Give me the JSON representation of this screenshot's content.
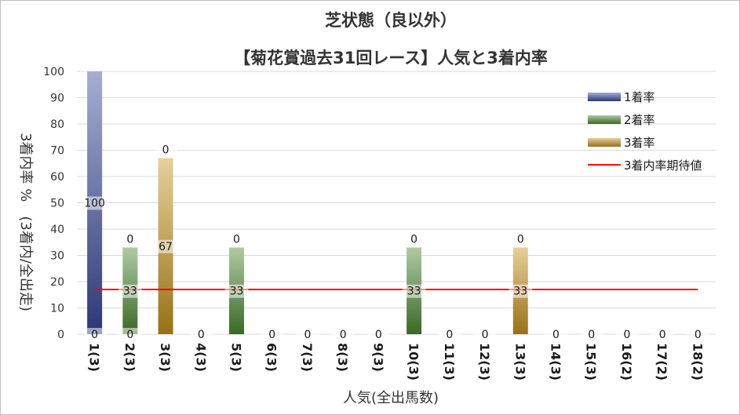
{
  "chart_data": {
    "type": "bar",
    "title": "芝状態（良以外）",
    "subtitle": "【菊花賞過去31回レース】人気と3着内率",
    "xlabel": "人気(全出馬数)",
    "ylabel": "3着内率 %　(3着内/全出走)",
    "ylim": [
      0,
      100
    ],
    "yticks": [
      0,
      10,
      20,
      30,
      40,
      50,
      60,
      70,
      80,
      90,
      100
    ],
    "grid": true,
    "legend_position": "right",
    "stacked": true,
    "categories": [
      "1(3)",
      "2(3)",
      "3(3)",
      "4(3)",
      "5(3)",
      "6(3)",
      "7(3)",
      "8(3)",
      "9(3)",
      "10(3)",
      "11(3)",
      "12(3)",
      "13(3)",
      "14(3)",
      "15(3)",
      "16(2)",
      "17(2)",
      "18(2)"
    ],
    "series": [
      {
        "name": "1着率",
        "color": "#3a4a9a",
        "values": [
          100,
          0,
          0,
          0,
          0,
          0,
          0,
          0,
          0,
          0,
          0,
          0,
          0,
          0,
          0,
          0,
          0,
          0
        ]
      },
      {
        "name": "2着率",
        "color": "#4e8a34",
        "values": [
          0,
          33,
          0,
          0,
          33,
          0,
          0,
          0,
          0,
          33,
          0,
          0,
          0,
          0,
          0,
          0,
          0,
          0
        ]
      },
      {
        "name": "3着率",
        "color": "#c8961e",
        "values": [
          0,
          0,
          67,
          0,
          0,
          0,
          0,
          0,
          0,
          0,
          0,
          0,
          33,
          0,
          0,
          0,
          0,
          0
        ]
      }
    ],
    "data_labels": [
      {
        "category": "1(3)",
        "labels": [
          "0",
          "100"
        ]
      },
      {
        "category": "2(3)",
        "labels": [
          "0",
          "33",
          "0"
        ]
      },
      {
        "category": "3(3)",
        "labels": [
          "67",
          "0"
        ]
      },
      {
        "category": "4(3)",
        "labels": [
          "0"
        ]
      },
      {
        "category": "5(3)",
        "labels": [
          "33",
          "0"
        ]
      },
      {
        "category": "6(3)",
        "labels": [
          "0"
        ]
      },
      {
        "category": "7(3)",
        "labels": [
          "0"
        ]
      },
      {
        "category": "8(3)",
        "labels": [
          "0"
        ]
      },
      {
        "category": "9(3)",
        "labels": [
          "0"
        ]
      },
      {
        "category": "10(3)",
        "labels": [
          "33",
          "0"
        ]
      },
      {
        "category": "11(3)",
        "labels": [
          "0"
        ]
      },
      {
        "category": "12(3)",
        "labels": [
          "0"
        ]
      },
      {
        "category": "13(3)",
        "labels": [
          "33",
          "0"
        ]
      },
      {
        "category": "14(3)",
        "labels": [
          "0"
        ]
      },
      {
        "category": "15(3)",
        "labels": [
          "0"
        ]
      },
      {
        "category": "16(2)",
        "labels": [
          "0"
        ]
      },
      {
        "category": "17(2)",
        "labels": [
          "0"
        ]
      },
      {
        "category": "18(2)",
        "labels": [
          "0"
        ]
      }
    ],
    "reference_line": {
      "name": "3着内率期待値",
      "color": "#ff0000",
      "value": 17
    }
  }
}
